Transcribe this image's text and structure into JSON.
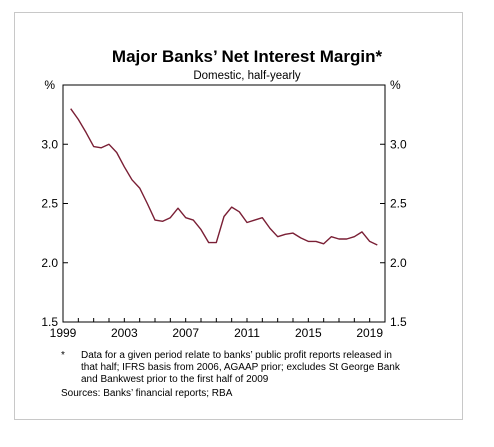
{
  "chart_data": {
    "type": "line",
    "title": "Major Banks’ Net Interest Margin*",
    "subtitle": "Domestic, half-yearly",
    "ylabel_left": "%",
    "ylabel_right": "%",
    "ylim": [
      1.5,
      3.5
    ],
    "yticks": [
      "3.0",
      "2.5",
      "2.0",
      "1.5"
    ],
    "ytick_values": [
      3.0,
      2.5,
      2.0,
      1.5
    ],
    "xlim": [
      1999,
      2020
    ],
    "xticks": [
      "1999",
      "2003",
      "2007",
      "2011",
      "2015",
      "2019"
    ],
    "xtick_values": [
      1999,
      2003,
      2007,
      2011,
      2015,
      2019
    ],
    "grid": false,
    "series": [
      {
        "color": "#7a1f35",
        "x": [
          1999.5,
          2000.0,
          2000.5,
          2001.0,
          2001.5,
          2002.0,
          2002.5,
          2003.0,
          2003.5,
          2004.0,
          2004.5,
          2005.0,
          2005.5,
          2006.0,
          2006.5,
          2007.0,
          2007.5,
          2008.0,
          2008.5,
          2009.0,
          2009.5,
          2010.0,
          2010.5,
          2011.0,
          2011.5,
          2012.0,
          2012.5,
          2013.0,
          2013.5,
          2014.0,
          2014.5,
          2015.0,
          2015.5,
          2016.0,
          2016.5,
          2017.0,
          2017.5,
          2018.0,
          2018.5,
          2019.0,
          2019.5
        ],
        "values": [
          3.3,
          3.21,
          3.1,
          2.98,
          2.97,
          3.0,
          2.93,
          2.81,
          2.7,
          2.63,
          2.5,
          2.36,
          2.35,
          2.38,
          2.46,
          2.38,
          2.36,
          2.28,
          2.17,
          2.17,
          2.39,
          2.47,
          2.43,
          2.34,
          2.36,
          2.38,
          2.29,
          2.22,
          2.24,
          2.25,
          2.21,
          2.18,
          2.18,
          2.16,
          2.22,
          2.2,
          2.2,
          2.22,
          2.26,
          2.18,
          2.15
        ]
      }
    ]
  },
  "footnote": {
    "marker": "*",
    "text": "Data for a given period relate to banks’ public profit reports released in that half; IFRS basis from 2006, AGAAP prior; excludes St George Bank and Bankwest prior to the first half of 2009"
  },
  "sources": "Sources: Banks’ financial reports; RBA"
}
